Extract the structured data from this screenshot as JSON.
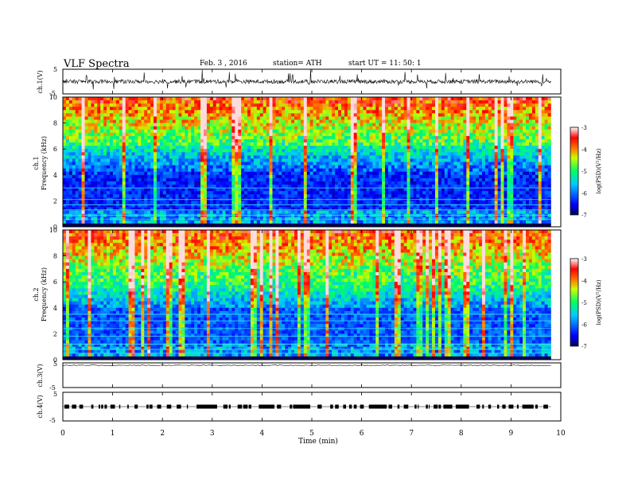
{
  "header": {
    "title": "VLF  Spectra",
    "date": "Feb. 3  , 2016",
    "station": "station= ATH",
    "start": "start  UT  =    11: 50: 1"
  },
  "chart_data": [
    {
      "id": "ch1-waveform",
      "type": "line",
      "ylabel": "ch.1(V)",
      "yticks": [
        "5",
        "-5"
      ],
      "ylim": [
        -5,
        5
      ],
      "baseline": 0
    },
    {
      "id": "ch1-spectrogram",
      "type": "heatmap",
      "ylabel_channel": "ch.1",
      "ylabel": "Frequency  (kHz)",
      "ylim": [
        0,
        10
      ],
      "yticks": [
        "0",
        "2",
        "4",
        "6",
        "8",
        "10"
      ],
      "colorbar": {
        "label": "log(PSD)(V²/Hz)",
        "range": [
          -7,
          -3
        ],
        "ticks": [
          "-3",
          "-4",
          "-5",
          "-6",
          "-7"
        ]
      }
    },
    {
      "id": "ch2-spectrogram",
      "type": "heatmap",
      "ylabel_channel": "ch.2",
      "ylabel": "Frequency  (kHz)",
      "ylim": [
        0,
        10
      ],
      "yticks": [
        "0",
        "2",
        "4",
        "6",
        "8",
        "10"
      ],
      "colorbar": {
        "label": "log(PSD)(V²/Hz)",
        "range": [
          -7,
          -3
        ],
        "ticks": [
          "-3",
          "-4",
          "-5",
          "-6",
          "-7"
        ]
      }
    },
    {
      "id": "ch3-waveform",
      "type": "line",
      "ylabel": "ch.3(V)",
      "yticks": [
        "5",
        "-5"
      ],
      "ylim": [
        -5,
        5
      ],
      "baseline": 4
    },
    {
      "id": "ch4-waveform",
      "type": "line",
      "ylabel": "ch.4(V)",
      "yticks": [
        "5",
        "-5"
      ],
      "ylim": [
        -5,
        5
      ],
      "baseline": 0
    }
  ],
  "xaxis": {
    "label": "Time  (min)",
    "xlim": [
      0,
      10
    ],
    "ticks": [
      "0",
      "1",
      "2",
      "3",
      "4",
      "5",
      "6",
      "7",
      "8",
      "9",
      "10"
    ],
    "data_end": 9.8
  },
  "colors": {
    "colormap": [
      "#000000",
      "#0000ff",
      "#00ffff",
      "#00ff00",
      "#ffff00",
      "#ff0000",
      "#ffffff"
    ],
    "frame": "#000000"
  }
}
